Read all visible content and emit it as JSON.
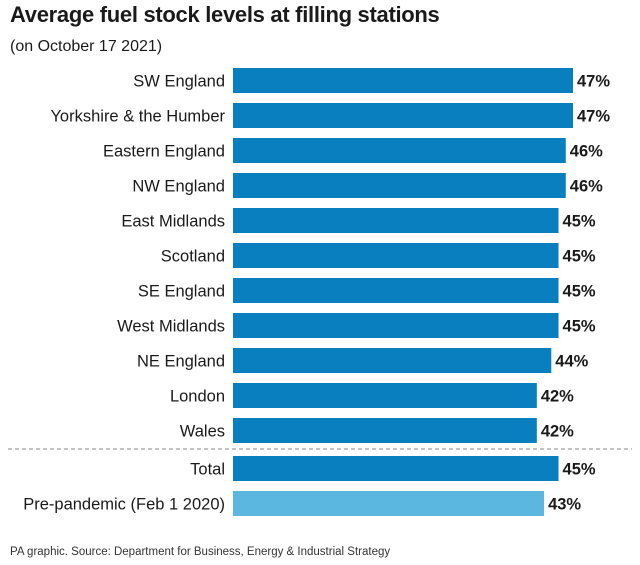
{
  "chart_data": {
    "type": "bar",
    "orientation": "horizontal",
    "title": "Average fuel stock levels at filling stations",
    "subtitle": "(on October 17 2021)",
    "categories": [
      "SW England",
      "Yorkshire & the Humber",
      "Eastern England",
      "NW England",
      "East Midlands",
      "Scotland",
      "SE England",
      "West Midlands",
      "NE England",
      "London",
      "Wales",
      "Total",
      "Pre-pandemic (Feb 1 2020)"
    ],
    "values": [
      47,
      47,
      46,
      46,
      45,
      45,
      45,
      45,
      44,
      42,
      42,
      45,
      43
    ],
    "value_labels": [
      "47%",
      "47%",
      "46%",
      "46%",
      "45%",
      "45%",
      "45%",
      "45%",
      "44%",
      "42%",
      "42%",
      "45%",
      "43%"
    ],
    "highlight_last": true,
    "separator_before_index": 11,
    "unit": "%",
    "grid": false,
    "legend": "none"
  },
  "colors": {
    "bar": "#0a7fc0",
    "bar_highlight": "#5bb7e0",
    "separator": "#888888"
  },
  "footer": "PA graphic. Source: Department for Business, Energy & Industrial Strategy"
}
